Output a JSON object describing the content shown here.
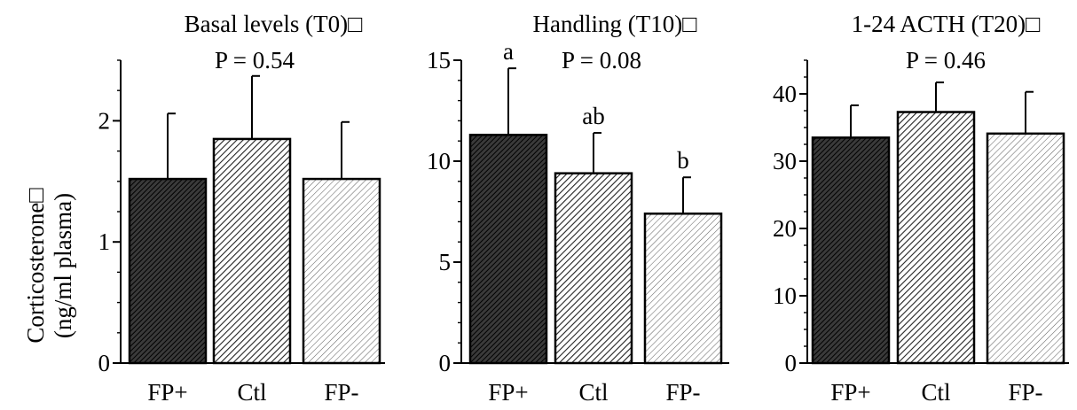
{
  "chart_data": [
    {
      "type": "bar",
      "title": "Basal levels (T0)□",
      "p_value": "P = 0.54",
      "ylabel": "Corticosterone□",
      "ylabel_line2": "(ng/ml plasma)",
      "categories": [
        "FP+",
        "Ctl",
        "FP-"
      ],
      "values": [
        1.52,
        1.85,
        1.52
      ],
      "errors": [
        0.54,
        0.52,
        0.47
      ],
      "significance": [
        "",
        "",
        ""
      ],
      "ylim": [
        0,
        2.5
      ],
      "yticks": [
        0,
        1,
        2
      ],
      "ytick_labels": [
        "0",
        "1",
        "2"
      ],
      "minor_step": 0.25,
      "bar_patterns": [
        "dark",
        "medium",
        "light"
      ]
    },
    {
      "type": "bar",
      "title": "Handling (T10)□",
      "p_value": "P = 0.08",
      "categories": [
        "FP+",
        "Ctl",
        "FP-"
      ],
      "values": [
        11.3,
        9.4,
        7.4
      ],
      "errors": [
        3.3,
        2.0,
        1.8
      ],
      "significance": [
        "a",
        "ab",
        "b"
      ],
      "ylim": [
        0,
        15
      ],
      "yticks": [
        0,
        5,
        10,
        15
      ],
      "ytick_labels": [
        "0",
        "5",
        "10",
        "15"
      ],
      "minor_step": 1,
      "bar_patterns": [
        "dark",
        "medium",
        "light"
      ]
    },
    {
      "type": "bar",
      "title": "1-24 ACTH (T20)□",
      "p_value": "P = 0.46",
      "categories": [
        "FP+",
        "Ctl",
        "FP-"
      ],
      "values": [
        33.5,
        37.3,
        34.1
      ],
      "errors": [
        4.8,
        4.4,
        6.2
      ],
      "significance": [
        "",
        "",
        ""
      ],
      "ylim": [
        0,
        45
      ],
      "yticks": [
        0,
        10,
        20,
        30,
        40
      ],
      "ytick_labels": [
        "0",
        "10",
        "20",
        "30",
        "40"
      ],
      "minor_step": 2.5,
      "bar_patterns": [
        "dark",
        "medium",
        "light"
      ]
    }
  ]
}
